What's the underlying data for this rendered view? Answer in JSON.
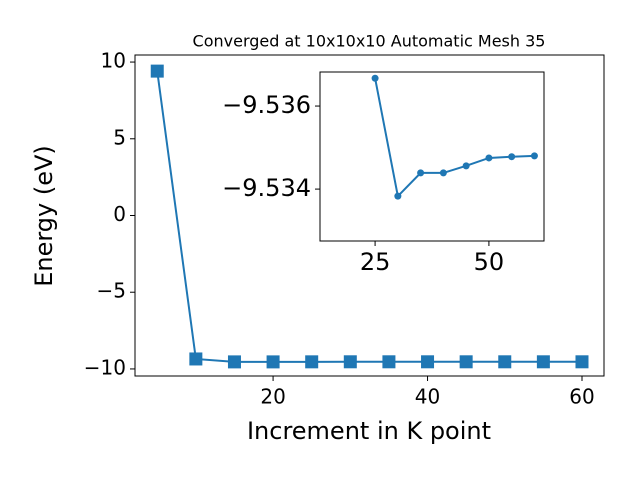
{
  "chart_data": [
    {
      "type": "line",
      "title": "Converged at 10x10x10 Automatic Mesh 35",
      "x_label": "Increment in K point",
      "y_label": "Energy (eV)",
      "x": [
        5,
        10,
        15,
        20,
        25,
        30,
        35,
        40,
        45,
        50,
        55,
        60
      ],
      "series": [
        {
          "color": "#1f77b4",
          "marker": "square",
          "values": [
            9.41,
            -9.35,
            -9.54,
            -9.54,
            -9.5367,
            -9.5338,
            -9.5344,
            -9.5344,
            -9.5346,
            -9.5348,
            -9.5348,
            -9.5348
          ]
        }
      ],
      "xlim": [
        2.12,
        62.85
      ],
      "ylim": [
        -10.46,
        10.46
      ],
      "xticks": [
        20,
        40,
        60
      ],
      "yticks": [
        {
          "value": -10,
          "label": "−10"
        },
        {
          "value": -5,
          "label": "−5"
        },
        0,
        5,
        10
      ]
    },
    {
      "type": "line",
      "x": [
        25,
        30,
        35,
        40,
        45,
        50,
        55,
        60
      ],
      "series": [
        {
          "color": "#1f77b4",
          "marker": "circle",
          "values": [
            -9.53667,
            -9.53383,
            -9.53439,
            -9.53439,
            -9.53456,
            -9.53475,
            -9.53478,
            -9.5348
          ]
        }
      ],
      "xlim": [
        12.9,
        62.1
      ],
      "ylim": [
        -9.53275,
        -9.53682
      ],
      "xticks": [
        25,
        50
      ],
      "yticks": [
        {
          "value": -9.536,
          "label": "−9.536"
        },
        {
          "value": -9.534,
          "label": "−9.534"
        }
      ]
    }
  ]
}
